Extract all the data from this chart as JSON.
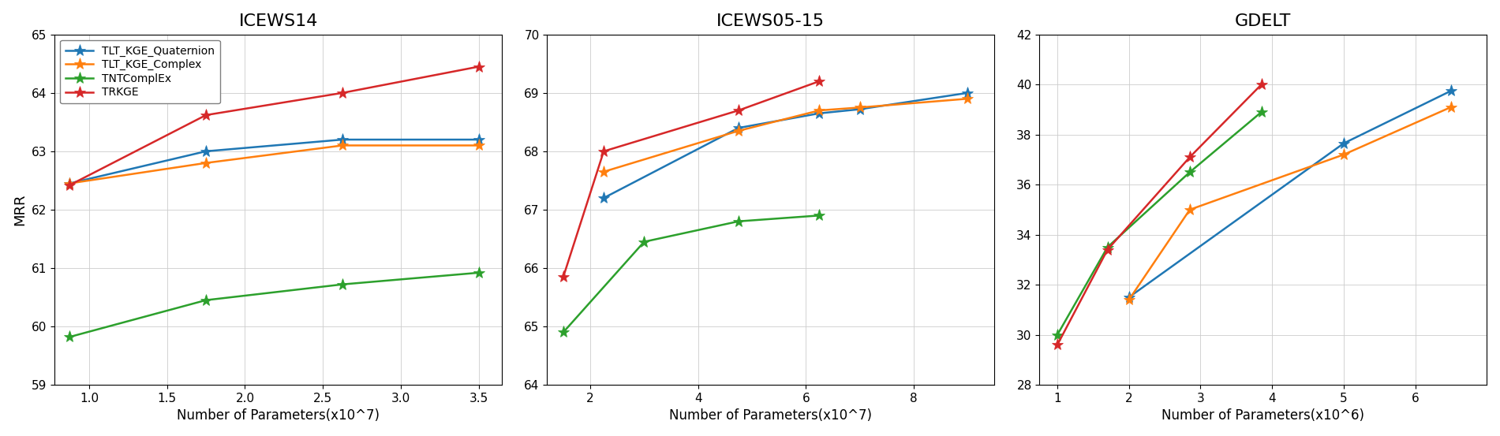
{
  "charts": [
    {
      "title": "ICEWS14",
      "xlabel": "Number of Parameters(x10^7)",
      "ylabel": "MRR",
      "ylim": [
        59,
        65
      ],
      "yticks": [
        59,
        60,
        61,
        62,
        63,
        64,
        65
      ],
      "xlim": [
        0.78,
        3.65
      ],
      "xticks": [
        1.0,
        1.5,
        2.0,
        2.5,
        3.0,
        3.5
      ],
      "series": [
        {
          "label": "TLT_KGE_Quaternion",
          "color": "#1f77b4",
          "marker": "*",
          "x": [
            0.875,
            1.75,
            2.625,
            3.5
          ],
          "y": [
            62.45,
            63.0,
            63.2,
            63.2
          ]
        },
        {
          "label": "TLT_KGE_Complex",
          "color": "#ff7f0e",
          "marker": "*",
          "x": [
            0.875,
            1.75,
            2.625,
            3.5
          ],
          "y": [
            62.45,
            62.8,
            63.1,
            63.1
          ]
        },
        {
          "label": "TNTComplEx",
          "color": "#2ca02c",
          "marker": "*",
          "x": [
            0.875,
            1.75,
            2.625,
            3.5
          ],
          "y": [
            59.82,
            60.45,
            60.72,
            60.92
          ]
        },
        {
          "label": "TRKGE",
          "color": "#d62728",
          "marker": "*",
          "x": [
            0.875,
            1.75,
            2.625,
            3.5
          ],
          "y": [
            62.42,
            63.62,
            64.0,
            64.45
          ]
        }
      ]
    },
    {
      "title": "ICEWS05-15",
      "xlabel": "Number of Parameters(x10^7)",
      "ylabel": "",
      "ylim": [
        64,
        70
      ],
      "yticks": [
        64,
        65,
        66,
        67,
        68,
        69,
        70
      ],
      "xlim": [
        1.2,
        9.5
      ],
      "xticks": [
        2,
        4,
        6,
        8
      ],
      "series": [
        {
          "label": "TLT_KGE_Quaternion",
          "color": "#1f77b4",
          "marker": "*",
          "x": [
            2.25,
            4.75,
            6.25,
            7.0,
            9.0
          ],
          "y": [
            67.2,
            68.4,
            68.65,
            68.72,
            69.0
          ]
        },
        {
          "label": "TLT_KGE_Complex",
          "color": "#ff7f0e",
          "marker": "*",
          "x": [
            2.25,
            4.75,
            6.25,
            7.0,
            9.0
          ],
          "y": [
            67.65,
            68.35,
            68.7,
            68.75,
            68.9
          ]
        },
        {
          "label": "TNTComplEx",
          "color": "#2ca02c",
          "marker": "*",
          "x": [
            1.5,
            3.0,
            4.75,
            6.25
          ],
          "y": [
            64.9,
            66.45,
            66.8,
            66.9
          ]
        },
        {
          "label": "TRKGE",
          "color": "#d62728",
          "marker": "*",
          "x": [
            1.5,
            2.25,
            4.75,
            6.25
          ],
          "y": [
            65.85,
            68.0,
            68.7,
            69.2
          ]
        }
      ]
    },
    {
      "title": "GDELT",
      "xlabel": "Number of Parameters(x10^6)",
      "ylabel": "",
      "ylim": [
        28,
        42
      ],
      "yticks": [
        28,
        30,
        32,
        34,
        36,
        38,
        40,
        42
      ],
      "xlim": [
        0.75,
        7.0
      ],
      "xticks": [
        1,
        2,
        3,
        4,
        5,
        6
      ],
      "series": [
        {
          "label": "TLT_KGE_Quaternion",
          "color": "#1f77b4",
          "marker": "*",
          "x": [
            2.0,
            5.0,
            6.5
          ],
          "y": [
            31.5,
            37.65,
            39.75
          ]
        },
        {
          "label": "TLT_KGE_Complex",
          "color": "#ff7f0e",
          "marker": "*",
          "x": [
            2.0,
            2.85,
            5.0,
            6.5
          ],
          "y": [
            31.4,
            35.0,
            37.2,
            39.1
          ]
        },
        {
          "label": "TNTComplEx",
          "color": "#2ca02c",
          "marker": "*",
          "x": [
            1.0,
            1.7,
            2.85,
            3.85
          ],
          "y": [
            30.0,
            33.5,
            36.5,
            38.9
          ]
        },
        {
          "label": "TRKGE",
          "color": "#d62728",
          "marker": "*",
          "x": [
            1.0,
            1.7,
            2.85,
            3.85
          ],
          "y": [
            29.6,
            33.4,
            37.1,
            40.0
          ]
        }
      ]
    }
  ],
  "marker_size": 11,
  "linewidth": 1.8,
  "background_color": "#ffffff"
}
